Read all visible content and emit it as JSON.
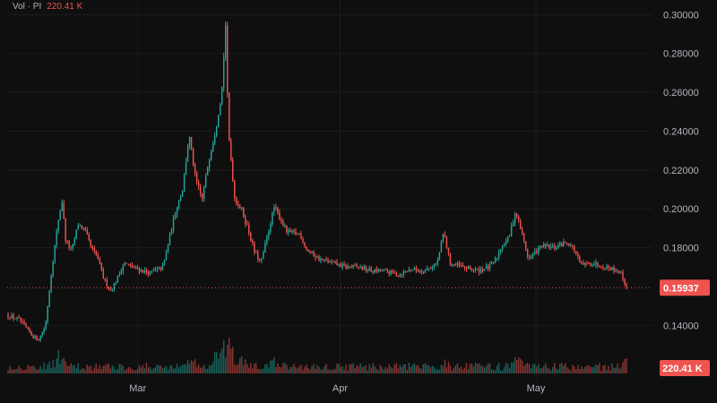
{
  "legend": {
    "prefix": "Vol · PI",
    "value": "220.41 K"
  },
  "colors": {
    "background": "#0f0f0f",
    "up": "#26a69a",
    "down": "#ef5350",
    "grid": "#1c1c1c",
    "axis_text": "#b2b5be"
  },
  "price_tag": {
    "label": "0.15937",
    "value": 0.15937
  },
  "volume_tag": {
    "label": "220.41 K"
  },
  "chart_data": {
    "type": "candlestick",
    "ylim": [
      0.13,
      0.302
    ],
    "y_ticks": [
      {
        "value": 0.3,
        "label": "0.30000"
      },
      {
        "value": 0.28,
        "label": "0.28000"
      },
      {
        "value": 0.26,
        "label": "0.26000"
      },
      {
        "value": 0.24,
        "label": "0.24000"
      },
      {
        "value": 0.22,
        "label": "0.22000"
      },
      {
        "value": 0.2,
        "label": "0.20000"
      },
      {
        "value": 0.18,
        "label": "0.18000"
      },
      {
        "value": 0.14,
        "label": "0.14000"
      }
    ],
    "x_ticks": [
      {
        "label": "Mar",
        "day": 20
      },
      {
        "label": "Apr",
        "day": 51
      },
      {
        "label": "May",
        "day": 81
      }
    ],
    "days_span": 95,
    "price_path": [
      [
        0,
        0.1455
      ],
      [
        2,
        0.143
      ],
      [
        4,
        0.1345
      ],
      [
        5,
        0.133
      ],
      [
        6,
        0.14
      ],
      [
        7,
        0.17
      ],
      [
        8,
        0.195
      ],
      [
        8.6,
        0.205
      ],
      [
        9,
        0.185
      ],
      [
        10,
        0.178
      ],
      [
        11,
        0.192
      ],
      [
        12,
        0.189
      ],
      [
        13,
        0.18
      ],
      [
        14,
        0.175
      ],
      [
        15,
        0.163
      ],
      [
        16,
        0.158
      ],
      [
        17,
        0.164
      ],
      [
        18,
        0.172
      ],
      [
        20,
        0.169
      ],
      [
        22,
        0.167
      ],
      [
        24,
        0.17
      ],
      [
        25,
        0.185
      ],
      [
        26,
        0.2
      ],
      [
        27,
        0.21
      ],
      [
        28,
        0.238
      ],
      [
        29,
        0.215
      ],
      [
        30,
        0.205
      ],
      [
        31,
        0.225
      ],
      [
        32,
        0.24
      ],
      [
        33,
        0.26
      ],
      [
        33.6,
        0.295
      ],
      [
        34,
        0.24
      ],
      [
        35,
        0.205
      ],
      [
        36,
        0.2
      ],
      [
        37,
        0.19
      ],
      [
        38,
        0.178
      ],
      [
        39,
        0.172
      ],
      [
        40,
        0.186
      ],
      [
        41,
        0.201
      ],
      [
        42,
        0.195
      ],
      [
        43,
        0.188
      ],
      [
        45,
        0.187
      ],
      [
        46,
        0.179
      ],
      [
        48,
        0.174
      ],
      [
        50,
        0.172
      ],
      [
        52,
        0.17
      ],
      [
        54,
        0.17
      ],
      [
        56,
        0.168
      ],
      [
        58,
        0.168
      ],
      [
        60,
        0.166
      ],
      [
        62,
        0.169
      ],
      [
        64,
        0.168
      ],
      [
        66,
        0.172
      ],
      [
        67,
        0.188
      ],
      [
        68,
        0.172
      ],
      [
        70,
        0.17
      ],
      [
        72,
        0.168
      ],
      [
        74,
        0.17
      ],
      [
        75,
        0.174
      ],
      [
        76,
        0.182
      ],
      [
        77,
        0.185
      ],
      [
        78,
        0.199
      ],
      [
        79,
        0.187
      ],
      [
        80,
        0.174
      ],
      [
        82,
        0.181
      ],
      [
        84,
        0.18
      ],
      [
        86,
        0.183
      ],
      [
        87,
        0.179
      ],
      [
        88,
        0.171
      ],
      [
        90,
        0.172
      ],
      [
        92,
        0.17
      ],
      [
        94,
        0.168
      ],
      [
        95,
        0.1595
      ]
    ],
    "volume_spikes": [
      {
        "day": 7,
        "mult": 2.2
      },
      {
        "day": 8,
        "mult": 2.6
      },
      {
        "day": 28,
        "mult": 2.4
      },
      {
        "day": 32,
        "mult": 2.8
      },
      {
        "day": 33.5,
        "mult": 4.5
      },
      {
        "day": 34,
        "mult": 3.5
      },
      {
        "day": 36,
        "mult": 2.0
      },
      {
        "day": 41,
        "mult": 1.8
      },
      {
        "day": 67,
        "mult": 1.6
      },
      {
        "day": 78,
        "mult": 1.8
      },
      {
        "day": 95,
        "mult": 2.2
      }
    ]
  }
}
